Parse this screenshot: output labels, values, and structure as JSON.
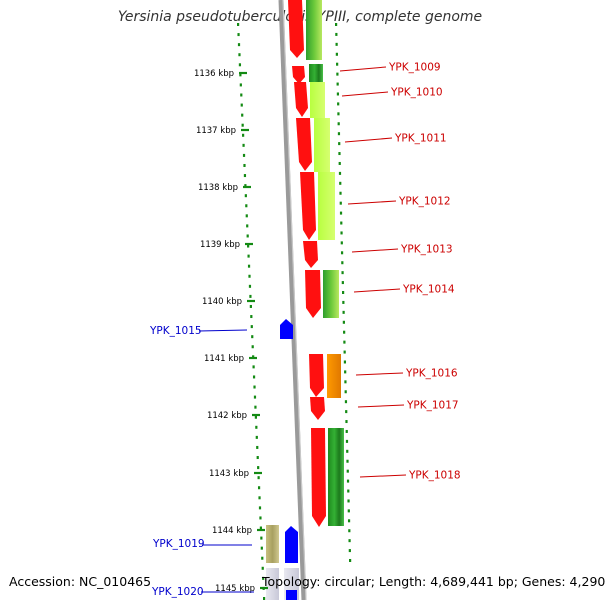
{
  "title": "Yersinia pseudotuberculosis YPIII, complete genome",
  "footer": {
    "accession": "Accession: NC_010465",
    "topology": "Topology: circular; Length: 4,689,441 bp; Genes: 4,290"
  },
  "ticks": [
    {
      "label": "1136 kbp",
      "pos": 1136
    },
    {
      "label": "1137 kbp",
      "pos": 1137
    },
    {
      "label": "1138 kbp",
      "pos": 1138
    },
    {
      "label": "1139 kbp",
      "pos": 1139
    },
    {
      "label": "1140 kbp",
      "pos": 1140
    },
    {
      "label": "1141 kbp",
      "pos": 1141
    },
    {
      "label": "1142 kbp",
      "pos": 1142
    },
    {
      "label": "1143 kbp",
      "pos": 1143
    },
    {
      "label": "1144 kbp",
      "pos": 1144
    },
    {
      "label": "1145 kbp",
      "pos": 1145
    }
  ],
  "right_genes": [
    {
      "label": "YPK_1009",
      "color": "#cc0000"
    },
    {
      "label": "YPK_1010",
      "color": "#cc0000"
    },
    {
      "label": "YPK_1011",
      "color": "#cc0000"
    },
    {
      "label": "YPK_1012",
      "color": "#cc0000"
    },
    {
      "label": "YPK_1013",
      "color": "#cc0000"
    },
    {
      "label": "YPK_1014",
      "color": "#cc0000"
    },
    {
      "label": "YPK_1016",
      "color": "#cc0000"
    },
    {
      "label": "YPK_1017",
      "color": "#cc0000"
    },
    {
      "label": "YPK_1018",
      "color": "#cc0000"
    }
  ],
  "left_genes": [
    {
      "label": "YPK_1015",
      "color": "#0000cc"
    },
    {
      "label": "YPK_1019",
      "color": "#0000cc"
    },
    {
      "label": "YPK_1020",
      "color": "#0000cc"
    }
  ]
}
